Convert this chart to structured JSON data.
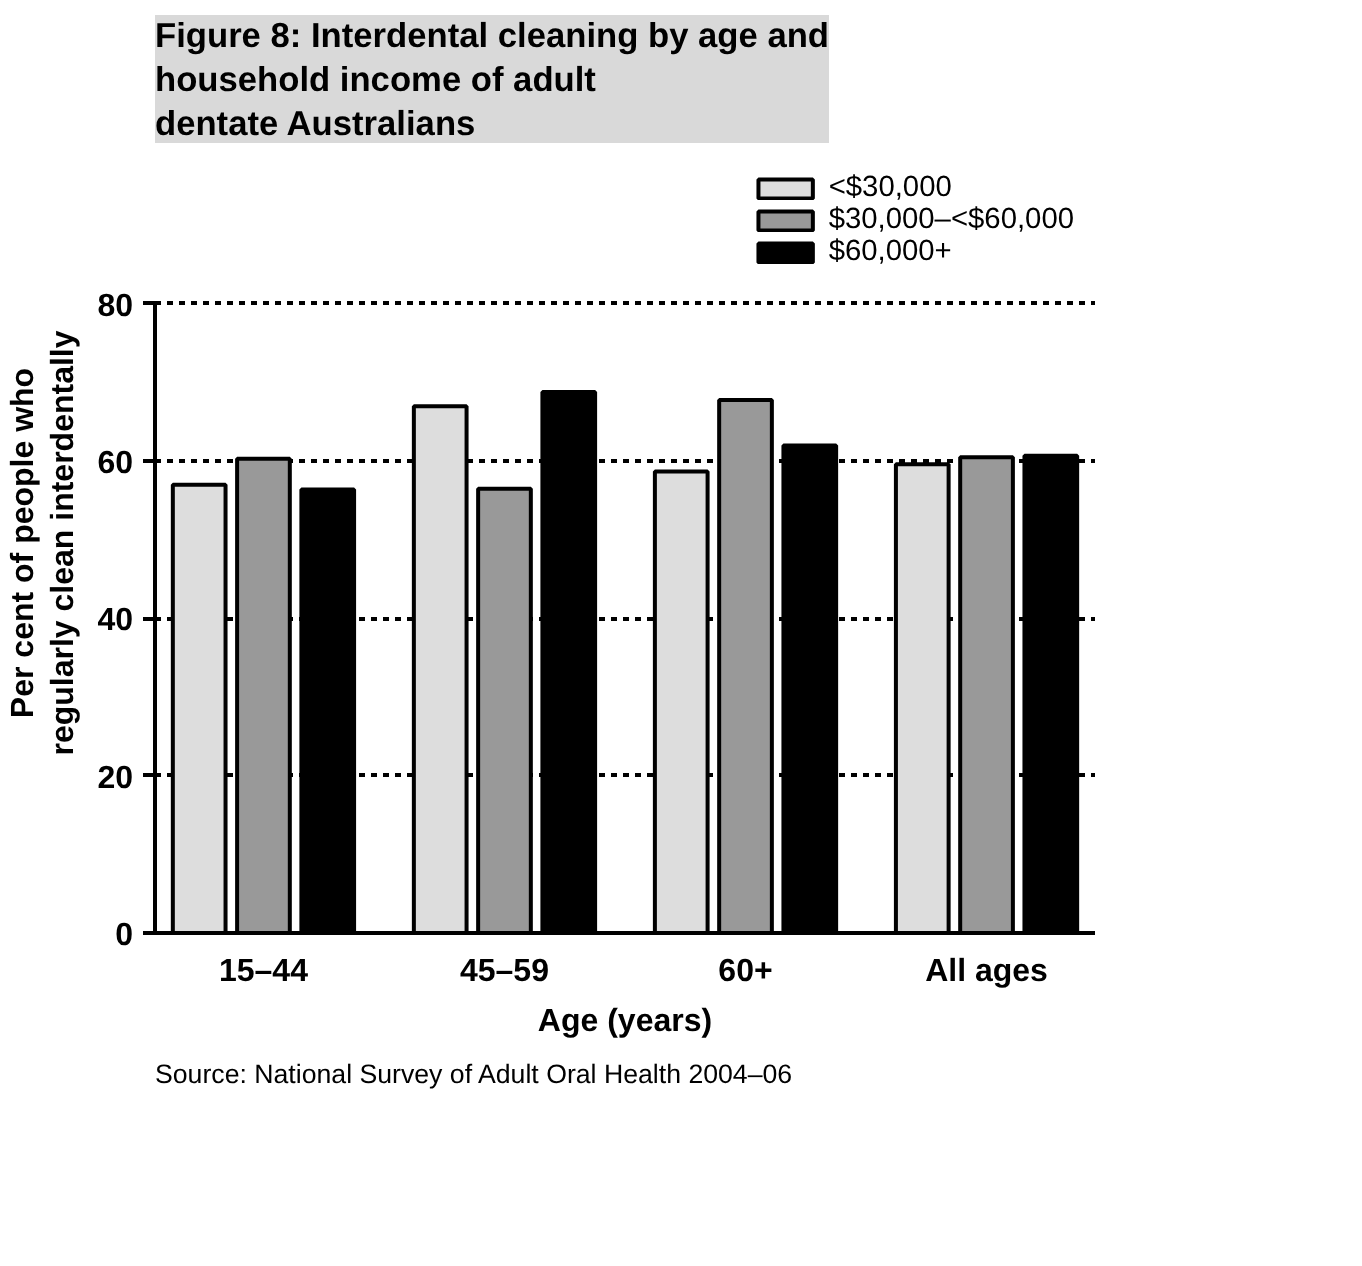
{
  "chart_data": {
    "type": "bar",
    "title": "Figure 8: Interdental cleaning by age and household income of adult dentate Australians",
    "xlabel": "Age (years)",
    "ylabel": "Per cent of people who\nregularly clean interdentally",
    "categories": [
      "15–44",
      "45–59",
      "60+",
      "All ages"
    ],
    "series": [
      {
        "name": "<$30,000",
        "color": "#dddddd",
        "values": [
          57,
          67,
          58.7,
          59.6
        ]
      },
      {
        "name": "$30,000–<$60,000",
        "color": "#999999",
        "values": [
          60.3,
          56.5,
          67.8,
          60.5
        ]
      },
      {
        "name": "$60,000+",
        "color": "#000000",
        "values": [
          56.4,
          68.8,
          62,
          60.7
        ]
      }
    ],
    "ylim": [
      0,
      80
    ],
    "yticks": [
      0,
      20,
      40,
      60,
      80
    ],
    "grid": "y",
    "legend": "top right",
    "annotations": [
      "Source: National Survey of Adult Oral Health 2004–06"
    ]
  }
}
